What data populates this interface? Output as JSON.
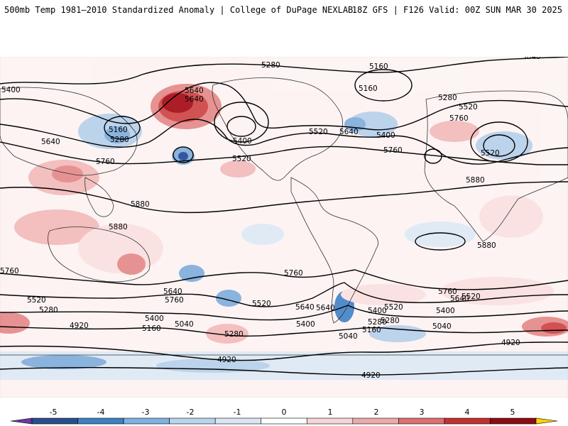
{
  "header": {
    "left": "500mb Temp 1981–2010 Standardized Anomaly | College of DuPage NEXLAB",
    "right": "18Z GFS | F126 Valid: 00Z SUN MAR 30 2025"
  },
  "contour_labels": [
    "5280",
    "5160",
    "5160",
    "5040",
    "5400",
    "5280",
    "5520",
    "5640",
    "5160",
    "5280",
    "5640",
    "5760",
    "5400",
    "5520",
    "5640",
    "5400",
    "5760",
    "5520",
    "5640",
    "5760",
    "5520",
    "5880",
    "5880",
    "5880",
    "5880",
    "5760",
    "5760",
    "5640",
    "5760",
    "5520",
    "5400",
    "5640",
    "5520",
    "5280",
    "5400",
    "5280",
    "5160",
    "5040",
    "4920",
    "5400",
    "5640",
    "5520",
    "5760",
    "5640",
    "5400",
    "5280",
    "5160",
    "5040",
    "5520",
    "5280",
    "5040",
    "4920",
    "4920",
    "4920"
  ],
  "colorbar": {
    "ticks": [
      "-5",
      "-4",
      "-3",
      "-2",
      "-1",
      "0",
      "1",
      "2",
      "3",
      "4",
      "5"
    ],
    "colors": [
      "#6a3aa0",
      "#2a4d8c",
      "#3f7fc2",
      "#7fb0e0",
      "#bcd3ec",
      "#dce6f2",
      "#ffffff",
      "#f5d5d5",
      "#ecaaaa",
      "#de7070",
      "#c43030",
      "#8c0c12",
      "#ffd400"
    ]
  },
  "map_style": {
    "background": "#ffffff",
    "warm_colors": [
      "#fbe1e1",
      "#f3bcbc",
      "#e68d8d",
      "#cf4949",
      "#a8121c"
    ],
    "cool_colors": [
      "#dfe9f4",
      "#b9d1ec",
      "#84afdd",
      "#4a86c8",
      "#2b4f9a"
    ]
  }
}
